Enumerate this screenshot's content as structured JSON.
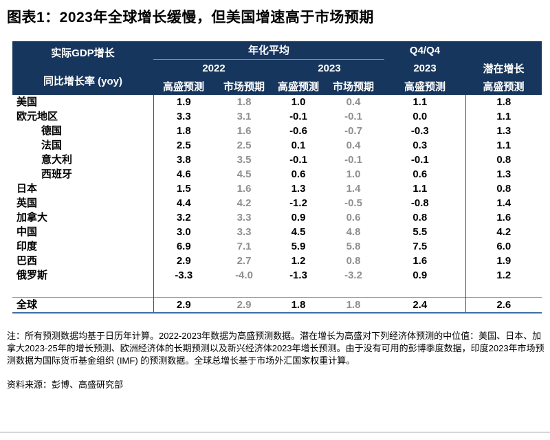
{
  "title": "图表1：2023年全球增长缓慢，但美国增速高于市场预期",
  "colors": {
    "header_bg": "#17365D",
    "header_text": "#FFFFFF",
    "market_gray": "#8F8F8F",
    "vline": "#4D4D4D",
    "divider_light": "#7E99B7",
    "divider_blue": "#3A6EA5",
    "page_rule": "#9A9A9A"
  },
  "table": {
    "header": {
      "left_line1": "实际GDP增长",
      "left_line2": "同比增长率 (yoy)",
      "group_annualized": "年化平均",
      "group_q4": "Q4/Q4",
      "group_potential": "潜在增长",
      "year_2022": "2022",
      "year_2023": "2023",
      "q4_year": "2023",
      "sub_gs": "高盛预测",
      "sub_mkt": "市场预期"
    }
  },
  "chart_data": {
    "type": "table",
    "title": "图表1：2023年全球增长缓慢，但美国增速高于市场预期",
    "columns": [
      "实际GDP增长 同比增长率 (yoy)",
      "年化平均 2022 高盛预测",
      "年化平均 2022 市场预期",
      "年化平均 2023 高盛预测",
      "年化平均 2023 市场预期",
      "Q4/Q4 2023 高盛预测",
      "潜在增长 高盛预测"
    ],
    "rows": [
      {
        "label": "美国",
        "indent": false,
        "values": [
          "1.9",
          "1.8",
          "1.0",
          "0.4",
          "1.1",
          "1.8"
        ]
      },
      {
        "label": "欧元地区",
        "indent": false,
        "values": [
          "3.3",
          "3.1",
          "-0.1",
          "-0.1",
          "0.0",
          "1.1"
        ]
      },
      {
        "label": "德国",
        "indent": true,
        "values": [
          "1.8",
          "1.6",
          "-0.6",
          "-0.7",
          "-0.3",
          "1.3"
        ]
      },
      {
        "label": "法国",
        "indent": true,
        "values": [
          "2.5",
          "2.5",
          "0.1",
          "0.4",
          "0.3",
          "1.1"
        ]
      },
      {
        "label": "意大利",
        "indent": true,
        "values": [
          "3.8",
          "3.5",
          "-0.1",
          "-0.1",
          "-0.1",
          "0.8"
        ]
      },
      {
        "label": "西班牙",
        "indent": true,
        "values": [
          "4.6",
          "4.5",
          "0.6",
          "1.0",
          "0.6",
          "1.3"
        ]
      },
      {
        "label": "日本",
        "indent": false,
        "values": [
          "1.5",
          "1.6",
          "1.3",
          "1.4",
          "1.1",
          "0.8"
        ]
      },
      {
        "label": "英国",
        "indent": false,
        "values": [
          "4.4",
          "4.2",
          "-1.2",
          "-0.5",
          "-0.8",
          "1.4"
        ]
      },
      {
        "label": "加拿大",
        "indent": false,
        "values": [
          "3.2",
          "3.3",
          "0.9",
          "0.6",
          "0.8",
          "1.6"
        ]
      },
      {
        "label": "中国",
        "indent": false,
        "values": [
          "3.0",
          "3.3",
          "4.5",
          "4.8",
          "5.5",
          "4.2"
        ]
      },
      {
        "label": "印度",
        "indent": false,
        "values": [
          "6.9",
          "7.1",
          "5.9",
          "5.8",
          "7.5",
          "6.0"
        ]
      },
      {
        "label": "巴西",
        "indent": false,
        "values": [
          "2.9",
          "2.7",
          "1.2",
          "0.8",
          "1.6",
          "1.9"
        ]
      },
      {
        "label": "俄罗斯",
        "indent": false,
        "values": [
          "-3.3",
          "-4.0",
          "-1.3",
          "-3.2",
          "0.9",
          "1.2"
        ]
      }
    ],
    "total_row": {
      "label": "全球",
      "values": [
        "2.9",
        "2.9",
        "1.8",
        "1.8",
        "2.4",
        "2.6"
      ]
    }
  },
  "note": "注：所有预测数据均基于日历年计算。2022-2023年数据为高盛预测数据。潜在增长为高盛对下列经济体预测的中位值：美国、日本、加拿大2023-25年的增长预测、欧洲经济体的长期预测以及新兴经济体2023年增长预测。由于没有可用的彭博季度数据，印度2023年市场预测数据为国际货币基金组织 (IMF) 的预测数据。全球总增长基于市场外汇国家权重计算。",
  "source": "资料来源：彭博、高盛研究部"
}
